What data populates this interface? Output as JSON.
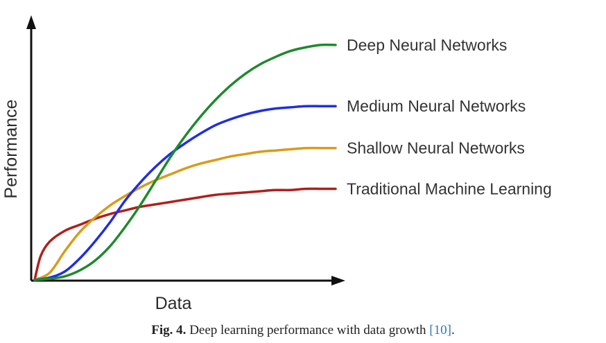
{
  "chart_data": {
    "type": "line",
    "xlabel": "Data",
    "ylabel": "Performance",
    "xlim": [
      0,
      100
    ],
    "ylim": [
      0,
      100
    ],
    "grid": false,
    "legend_placement": "right (labels at line ends)",
    "series": [
      {
        "name": "Deep Neural Networks",
        "color": "#1e8a2c",
        "x": [
          0,
          5,
          10,
          15,
          20,
          25,
          30,
          35,
          40,
          45,
          50,
          55,
          60,
          65,
          70,
          75,
          80,
          85,
          90,
          95,
          100
        ],
        "y": [
          0,
          0.5,
          1.5,
          4,
          8,
          14,
          22,
          31,
          41,
          51,
          60,
          68,
          75,
          81,
          86,
          90,
          93,
          95.5,
          97,
          98,
          98
        ]
      },
      {
        "name": "Medium Neural Networks",
        "color": "#1f2ee6",
        "x": [
          0,
          5,
          10,
          15,
          20,
          25,
          30,
          35,
          40,
          45,
          50,
          55,
          60,
          65,
          70,
          75,
          80,
          85,
          90,
          95,
          100
        ],
        "y": [
          0,
          1,
          3.5,
          9,
          16,
          24,
          33,
          40.5,
          47,
          52.5,
          57,
          61,
          64.5,
          67,
          69,
          70.5,
          71.5,
          72,
          72.5,
          72.5,
          72.5
        ]
      },
      {
        "name": "Shallow Neural Networks",
        "color": "#d99b1a",
        "x": [
          0,
          5,
          10,
          15,
          20,
          25,
          30,
          35,
          40,
          45,
          50,
          55,
          60,
          65,
          70,
          75,
          80,
          85,
          90,
          95,
          100
        ],
        "y": [
          0,
          3,
          12,
          20,
          26,
          31,
          35,
          38.5,
          41.5,
          44,
          46.5,
          48.5,
          50,
          51.5,
          52.5,
          53.5,
          54,
          54.5,
          55,
          55,
          55
        ]
      },
      {
        "name": "Traditional Machine Learning",
        "color": "#b01f1c",
        "x": [
          0,
          2,
          5,
          10,
          15,
          20,
          25,
          30,
          35,
          40,
          45,
          50,
          55,
          60,
          65,
          70,
          75,
          80,
          85,
          90,
          95,
          100
        ],
        "y": [
          0,
          10,
          16,
          20.5,
          23,
          25.5,
          27.5,
          29,
          30.5,
          31.5,
          32.5,
          33.5,
          34.5,
          35.5,
          36,
          36.5,
          37,
          37.5,
          37.5,
          38,
          38,
          38
        ]
      }
    ]
  },
  "caption": {
    "fig_label": "Fig. 4.",
    "text": "Deep learning performance with data growth",
    "reference": "[10]",
    "end": "."
  }
}
